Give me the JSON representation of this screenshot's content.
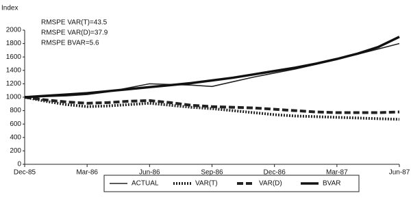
{
  "chart_data": {
    "type": "line",
    "y_label": "Index",
    "annotations": [
      "RMSPE VAR(T)=43.5",
      "RMSPE VAR(D)=37.9",
      "RMSPE BVAR=5.6"
    ],
    "categories": [
      "Dec-85",
      null,
      null,
      "Mar-86",
      null,
      null,
      "Jun-86",
      null,
      null,
      "Sep-86",
      null,
      null,
      "Dec-86",
      null,
      null,
      "Mar-87",
      null,
      null,
      "Jun-87"
    ],
    "series": [
      {
        "name": "ACTUAL",
        "color": "#222222",
        "dash": "",
        "width": 1.6,
        "values": [
          1000,
          1010,
          1020,
          1040,
          1080,
          1140,
          1200,
          1190,
          1180,
          1160,
          1230,
          1300,
          1360,
          1420,
          1490,
          1570,
          1640,
          1720,
          1800
        ]
      },
      {
        "name": "VAR(T)",
        "color": "#222222",
        "dash": "2 2",
        "width": 4,
        "values": [
          1000,
          940,
          890,
          860,
          870,
          890,
          910,
          880,
          850,
          830,
          800,
          770,
          740,
          720,
          710,
          700,
          690,
          680,
          670
        ]
      },
      {
        "name": "VAR(D)",
        "color": "#222222",
        "dash": "9 4",
        "width": 4,
        "values": [
          1000,
          960,
          930,
          910,
          920,
          940,
          950,
          920,
          880,
          860,
          850,
          840,
          820,
          800,
          780,
          770,
          770,
          770,
          780
        ]
      },
      {
        "name": "BVAR",
        "color": "#111111",
        "dash": "",
        "width": 3.5,
        "values": [
          1000,
          1020,
          1040,
          1060,
          1090,
          1120,
          1150,
          1180,
          1210,
          1250,
          1290,
          1340,
          1390,
          1440,
          1500,
          1570,
          1650,
          1750,
          1900
        ]
      }
    ],
    "ylim": [
      0,
      2000
    ],
    "yticks": [
      0,
      200,
      400,
      600,
      800,
      1000,
      1200,
      1400,
      1600,
      1800,
      2000
    ],
    "legend": "bottom"
  }
}
